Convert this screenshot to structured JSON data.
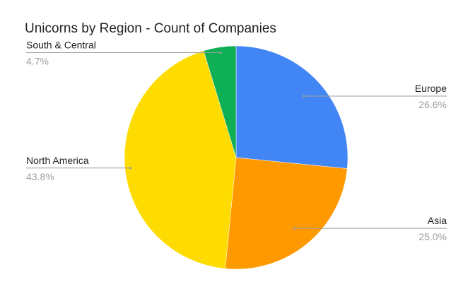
{
  "chart_data": {
    "type": "pie",
    "title": "Unicorns by Region - Count of Companies",
    "start_angle_deg": 0,
    "direction": "clockwise",
    "slices": [
      {
        "label": "Europe",
        "value": 26.6,
        "display": "26.6%",
        "color": "#4285F4"
      },
      {
        "label": "Asia",
        "value": 25.0,
        "display": "25.0%",
        "color": "#FF9900"
      },
      {
        "label": "North America",
        "value": 43.8,
        "display": "43.8%",
        "color": "#FFDC00"
      },
      {
        "label": "South & Central",
        "value": 4.7,
        "display": "4.7%",
        "color": "#0FAF55"
      }
    ],
    "legend": "none",
    "label_style": "leader-lines"
  },
  "colors": {
    "label_text": "#222222",
    "percent_text": "#9E9E9E",
    "leader_line": "#9E9E9E"
  }
}
